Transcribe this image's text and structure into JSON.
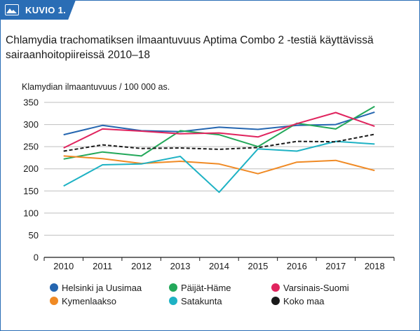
{
  "header": {
    "tab_label": "KUVIO 1.",
    "tab_icon": "image-icon",
    "accent_color": "#2a6db5"
  },
  "chart_data": {
    "type": "line",
    "title": "Chlamydia trachomatiksen ilmaantuvuus Aptima Combo 2 -testiä käyttävissä sairaanhoitopiireissä 2010–18",
    "ylabel": "Klamydian ilmaantuvuus / 100 000 as.",
    "xlabel": "",
    "categories": [
      "2010",
      "2011",
      "2012",
      "2013",
      "2014",
      "2015",
      "2016",
      "2017",
      "2018"
    ],
    "ylim": [
      0,
      350
    ],
    "yticks": [
      "0",
      "50",
      "100",
      "150",
      "200",
      "250",
      "300",
      "350"
    ],
    "grid": "horizontal",
    "legend_position": "bottom",
    "series": [
      {
        "name": "Helsinki ja Uusimaa",
        "color": "#2566b0",
        "dashed": false,
        "values": [
          277,
          298,
          286,
          284,
          294,
          289,
          298,
          300,
          328
        ]
      },
      {
        "name": "Päijät-Häme",
        "color": "#23a85a",
        "dashed": false,
        "values": [
          222,
          238,
          229,
          286,
          277,
          250,
          303,
          290,
          341
        ]
      },
      {
        "name": "Varsinais-Suomi",
        "color": "#e0245e",
        "dashed": false,
        "values": [
          247,
          290,
          285,
          279,
          281,
          272,
          302,
          327,
          296
        ]
      },
      {
        "name": "Kymenlaakso",
        "color": "#f08a24",
        "dashed": false,
        "values": [
          229,
          223,
          212,
          217,
          211,
          189,
          215,
          219,
          196
        ]
      },
      {
        "name": "Satakunta",
        "color": "#1eb2c4",
        "dashed": false,
        "values": [
          161,
          209,
          211,
          228,
          147,
          245,
          240,
          262,
          256
        ]
      },
      {
        "name": "Koko maa",
        "color": "#1a1a1a",
        "dashed": true,
        "values": [
          240,
          254,
          246,
          247,
          244,
          248,
          262,
          261,
          278
        ]
      }
    ]
  }
}
